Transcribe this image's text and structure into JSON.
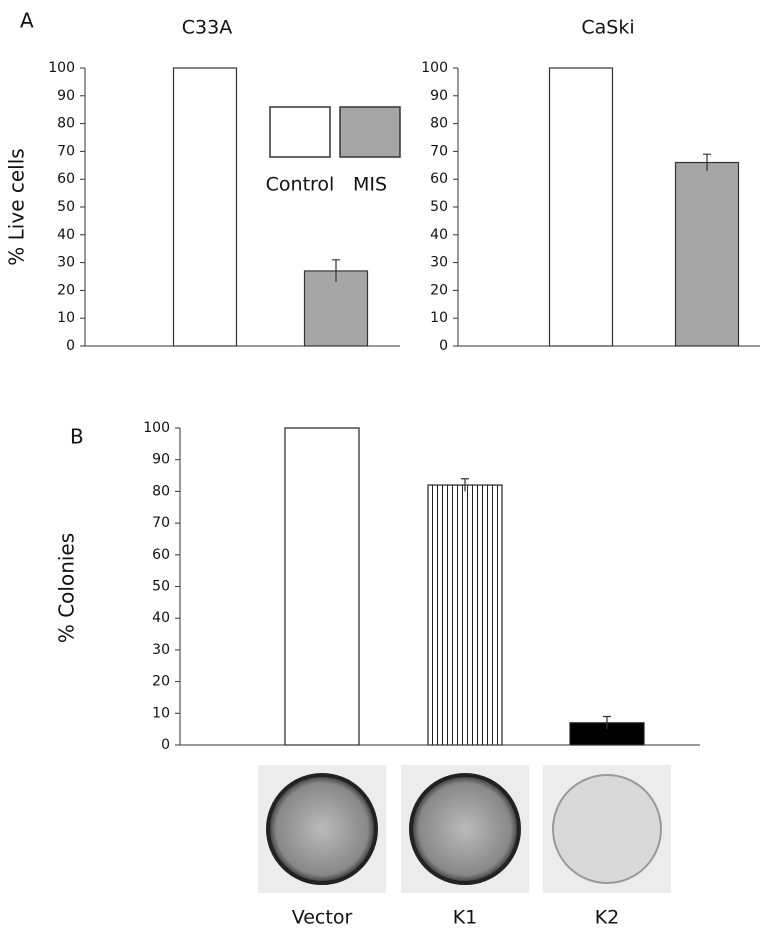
{
  "chart_data": [
    {
      "type": "bar",
      "panel": "A",
      "title": "C33A",
      "ylabel": "% Live cells",
      "categories": [
        null
      ],
      "series": [
        {
          "name": "Control",
          "color": "#ffffff",
          "values": [
            100
          ]
        },
        {
          "name": "MIS",
          "color": "#a6a6a6",
          "values": [
            27
          ],
          "errors": [
            4
          ]
        }
      ],
      "ylim": [
        0,
        100
      ],
      "yticks": [
        0,
        10,
        20,
        30,
        40,
        50,
        60,
        70,
        80,
        90,
        100
      ],
      "legend": "upper right"
    },
    {
      "type": "bar",
      "title": "CaSki",
      "categories": [
        null
      ],
      "series": [
        {
          "name": "Control",
          "color": "#ffffff",
          "values": [
            100
          ]
        },
        {
          "name": "MIS",
          "color": "#a6a6a6",
          "values": [
            66
          ],
          "errors": [
            3
          ]
        }
      ],
      "ylim": [
        0,
        100
      ],
      "yticks": [
        0,
        10,
        20,
        30,
        40,
        50,
        60,
        70,
        80,
        90,
        100
      ]
    },
    {
      "type": "bar",
      "panel": "B",
      "ylabel": "% Colonies",
      "categories": [
        "Vector",
        "K1",
        "K2"
      ],
      "values": [
        100,
        82,
        7
      ],
      "errors": [
        null,
        2,
        2
      ],
      "colors": [
        "#ffffff",
        "#ffffff",
        "#000000"
      ],
      "hatch": [
        false,
        true,
        false
      ],
      "ylim": [
        0,
        100
      ],
      "yticks": [
        0,
        10,
        20,
        30,
        40,
        50,
        60,
        70,
        80,
        90,
        100
      ]
    }
  ]
}
